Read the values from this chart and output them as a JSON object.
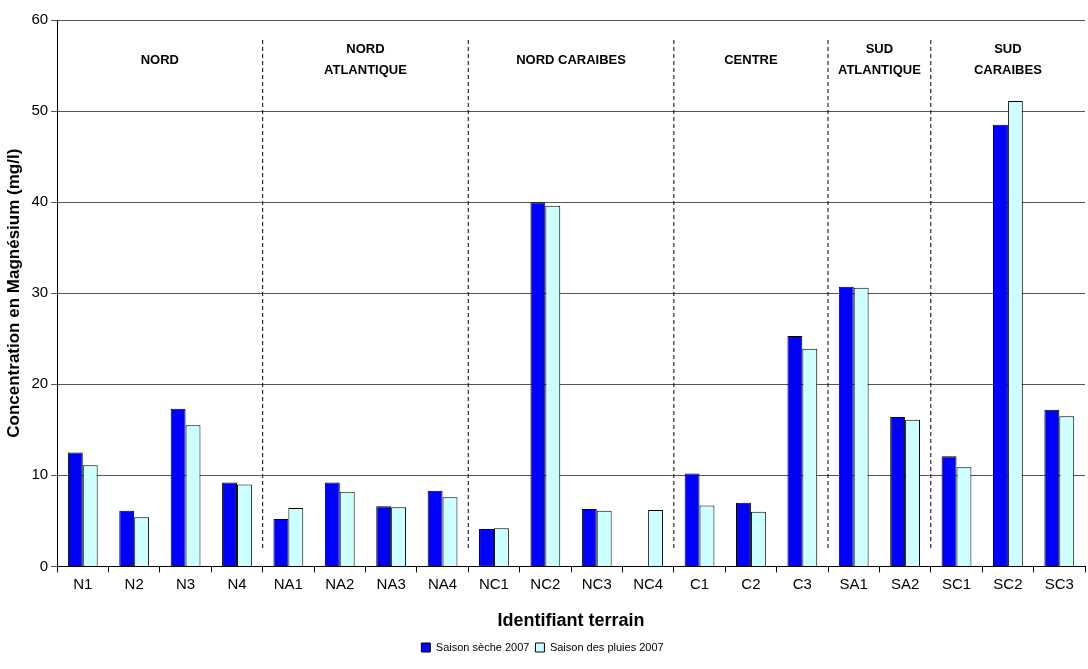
{
  "chart_data": {
    "type": "bar",
    "xlabel": "Identifiant terrain",
    "ylabel": "Concentration en Magnésium (mg/l)",
    "categories": [
      "N1",
      "N2",
      "N3",
      "N4",
      "NA1",
      "NA2",
      "NA3",
      "NA4",
      "NC1",
      "NC2",
      "NC3",
      "NC4",
      "C1",
      "C2",
      "C3",
      "SA1",
      "SA2",
      "SC1",
      "SC2",
      "SC3"
    ],
    "series": [
      {
        "name": "Saison sèche 2007",
        "color": "#0000ff",
        "values": [
          12.5,
          6.1,
          17.3,
          9.2,
          5.2,
          9.2,
          6.6,
          8.3,
          4.1,
          40,
          6.3,
          null,
          10.2,
          7,
          25.3,
          30.7,
          16.4,
          12.1,
          48.5,
          17.2
        ]
      },
      {
        "name": "Saison des pluies 2007",
        "color": "#ccffff",
        "values": [
          11.1,
          5.4,
          15.5,
          9,
          6.4,
          8.2,
          6.5,
          7.6,
          4.2,
          39.6,
          6.1,
          6.2,
          6.7,
          6,
          23.9,
          30.6,
          16.1,
          10.9,
          51.1,
          16.5
        ]
      }
    ],
    "ylim": [
      0,
      60
    ],
    "yticks": [
      0,
      10,
      20,
      30,
      40,
      50,
      60
    ],
    "grid": "y",
    "legend": "bottom",
    "annotations": [
      "NORD",
      "NORD\nATLANTIQUE",
      "NORD CARAIBES",
      "CENTRE",
      "SUD\nATLANTIQUE",
      "SUD\nCARAIBES"
    ]
  }
}
